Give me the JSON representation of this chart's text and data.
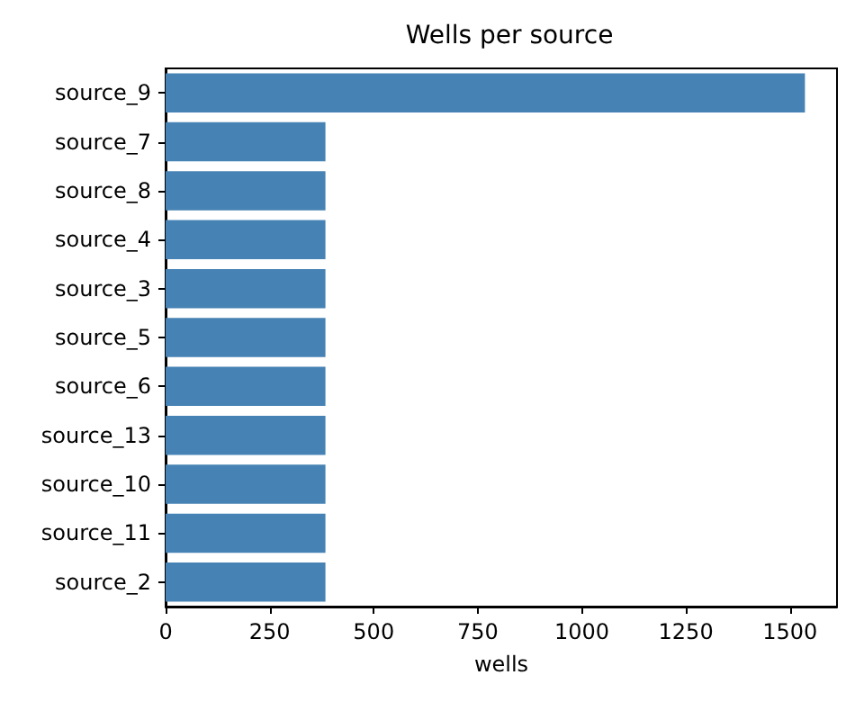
{
  "chart_data": {
    "type": "bar",
    "orientation": "horizontal",
    "title": "Wells per source",
    "xlabel": "wells",
    "categories": [
      "source_9",
      "source_7",
      "source_8",
      "source_4",
      "source_3",
      "source_5",
      "source_6",
      "source_13",
      "source_10",
      "source_11",
      "source_2"
    ],
    "values": [
      1536,
      384,
      384,
      384,
      384,
      384,
      384,
      384,
      384,
      384,
      384
    ],
    "color": "#4682b4",
    "xlim": [
      0,
      1613
    ],
    "xticks": [
      0,
      250,
      500,
      750,
      1000,
      1250,
      1500
    ],
    "grid": false
  }
}
